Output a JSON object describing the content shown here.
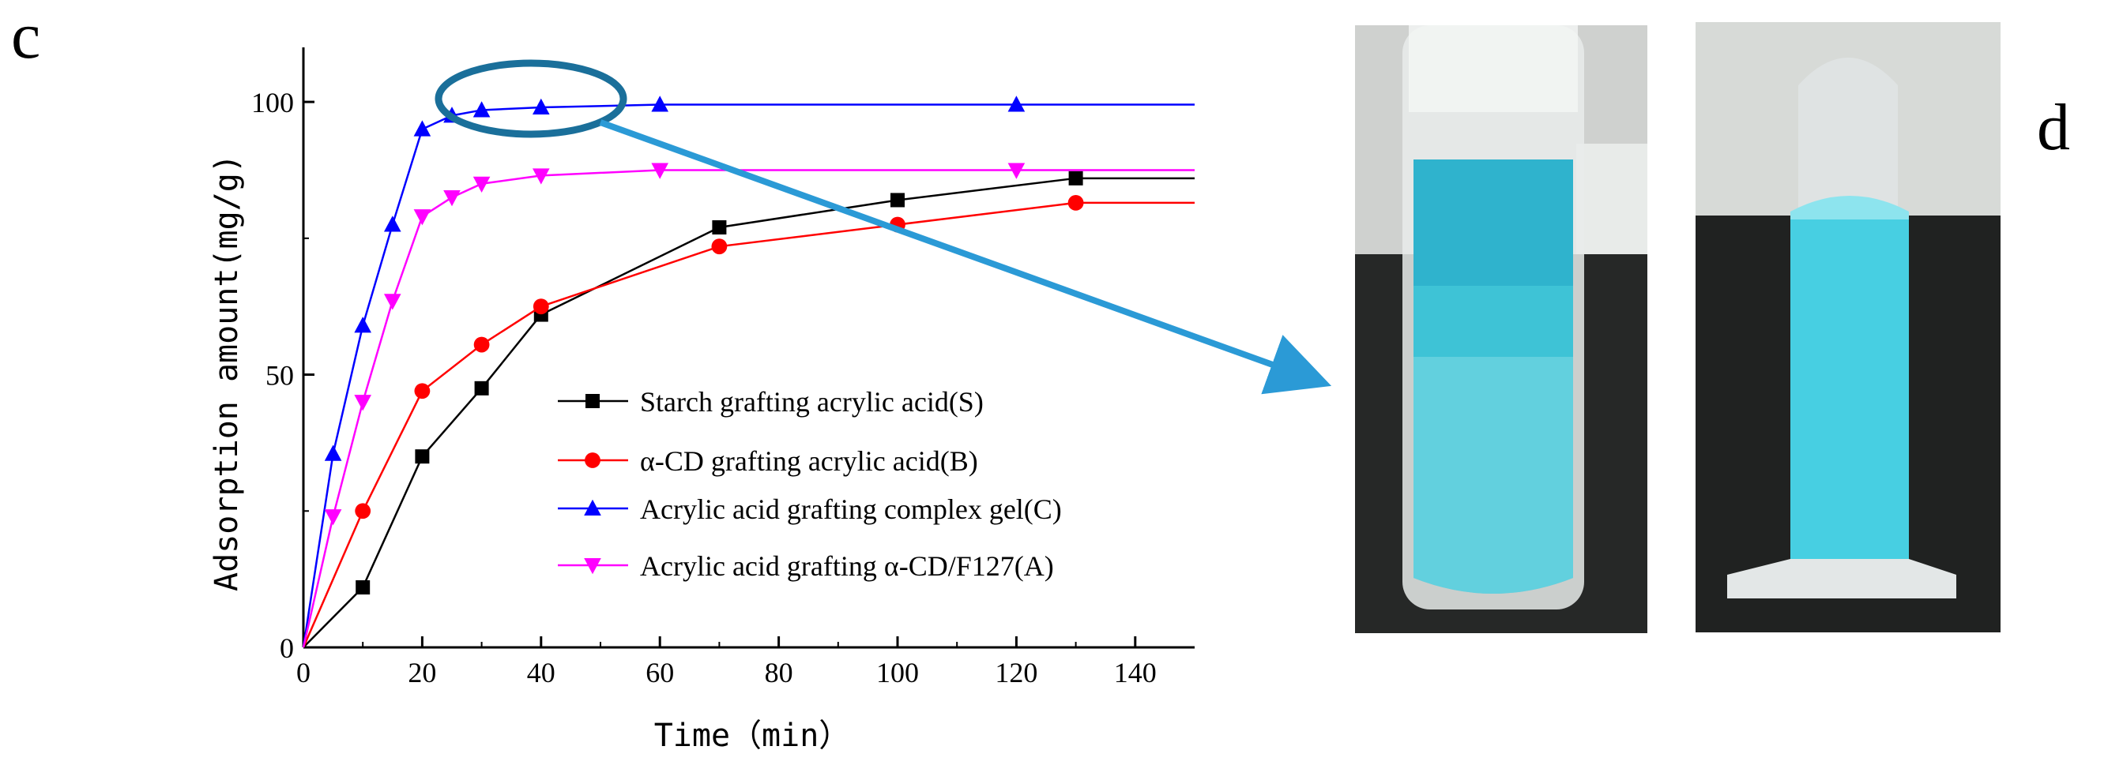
{
  "panels": {
    "left_label": "c",
    "right_label": "d"
  },
  "chart_data": {
    "type": "line",
    "xlabel": "Time（min）",
    "ylabel": "Adsorption amount(mg/g)",
    "xlim": [
      0,
      150
    ],
    "ylim": [
      0,
      110
    ],
    "xticks": [
      0,
      20,
      40,
      60,
      80,
      100,
      120,
      140
    ],
    "yticks": [
      0,
      50,
      100
    ],
    "grid": false,
    "legend_position": "center",
    "series": [
      {
        "name": "Starch grafting acrylic acid(S)",
        "color": "#000000",
        "marker": "square",
        "x": [
          0,
          10,
          20,
          30,
          40,
          70,
          100,
          130,
          150
        ],
        "y": [
          0,
          11,
          35,
          47.5,
          61,
          77,
          82,
          86,
          86
        ],
        "marker_x": [
          10,
          20,
          30,
          40,
          70,
          100,
          130
        ],
        "marker_y": [
          11,
          35,
          47.5,
          61,
          77,
          82,
          86
        ]
      },
      {
        "name": "α-CD grafting acrylic acid(B)",
        "color": "#ff0000",
        "marker": "circle",
        "x": [
          0,
          10,
          20,
          30,
          40,
          70,
          100,
          130,
          150
        ],
        "y": [
          0,
          25,
          47,
          55.5,
          62.5,
          73.5,
          77.5,
          81.5,
          81.5
        ],
        "marker_x": [
          10,
          20,
          30,
          40,
          70,
          100,
          130
        ],
        "marker_y": [
          25,
          47,
          55.5,
          62.5,
          73.5,
          77.5,
          81.5
        ]
      },
      {
        "name": "Acrylic acid grafting complex gel(C)",
        "color": "#0000ff",
        "marker": "triangle-up",
        "x": [
          0,
          5,
          10,
          15,
          20,
          25,
          30,
          40,
          60,
          120,
          150
        ],
        "y": [
          0,
          35.5,
          59,
          77.5,
          95,
          97.5,
          98.5,
          99,
          99.5,
          99.5,
          99.5
        ],
        "marker_x": [
          5,
          10,
          15,
          20,
          25,
          30,
          40,
          60,
          120
        ],
        "marker_y": [
          35.5,
          59,
          77.5,
          95,
          97.5,
          98.5,
          99,
          99.5,
          99.5
        ]
      },
      {
        "name": "Acrylic acid grafting α-CD/F127(A)",
        "color": "#ff00ff",
        "marker": "triangle-down",
        "x": [
          0,
          5,
          10,
          15,
          20,
          25,
          30,
          40,
          60,
          120,
          150
        ],
        "y": [
          0,
          24,
          45,
          63.5,
          79,
          82.5,
          85,
          86.5,
          87.5,
          87.5,
          87.5
        ],
        "marker_x": [
          5,
          10,
          15,
          20,
          25,
          30,
          40,
          60,
          120
        ],
        "marker_y": [
          24,
          45,
          63.5,
          79,
          82.5,
          85,
          86.5,
          87.5,
          87.5
        ]
      }
    ]
  },
  "colors": {
    "highlight_ellipse": "#1a6f9a",
    "arrow": "#2b9ad6",
    "gel": "#3cc8dc"
  },
  "photos": [
    {
      "name": "tube-left",
      "content": "gel-in-tube-upright"
    },
    {
      "name": "tube-right",
      "content": "gel-in-tube-inverted"
    }
  ]
}
